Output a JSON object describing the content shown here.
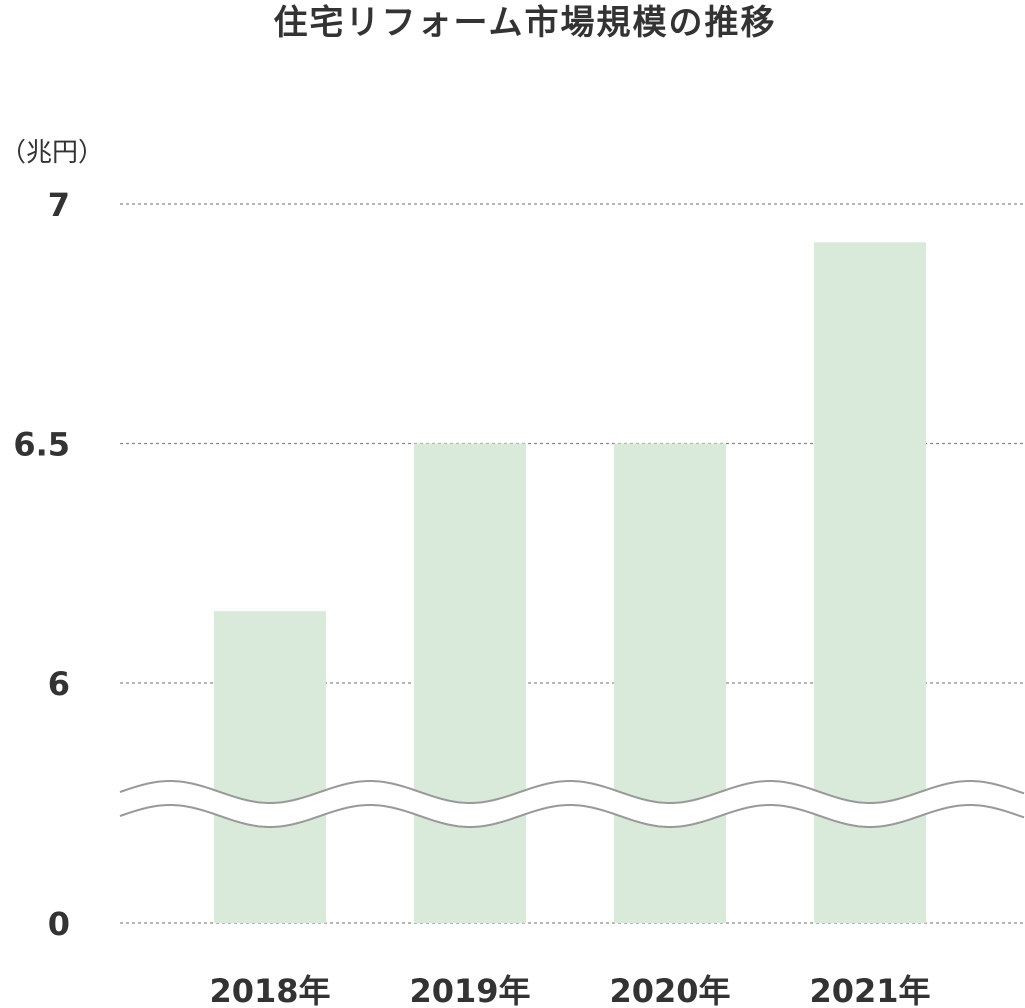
{
  "chart_data": {
    "type": "bar",
    "title": "住宅リフォーム市場規模の推移",
    "unit_label": "（兆円）",
    "categories": [
      "2018年",
      "2019年",
      "2020年",
      "2021年"
    ],
    "series": [
      {
        "values": [
          6.15,
          6.5,
          6.5,
          6.92
        ]
      }
    ],
    "yticks": [
      {
        "value": 0,
        "label": "0"
      },
      {
        "value": 6,
        "label": "6"
      },
      {
        "value": 6.5,
        "label": "6.5"
      },
      {
        "value": 7,
        "label": "7"
      }
    ],
    "axis_break": {
      "lower": 0,
      "upper": 6
    },
    "ylim": [
      0,
      7
    ],
    "grid": true,
    "bar_color": "#d9eadb",
    "grid_color": "#8a8a8a",
    "break_line_color": "#999999"
  }
}
